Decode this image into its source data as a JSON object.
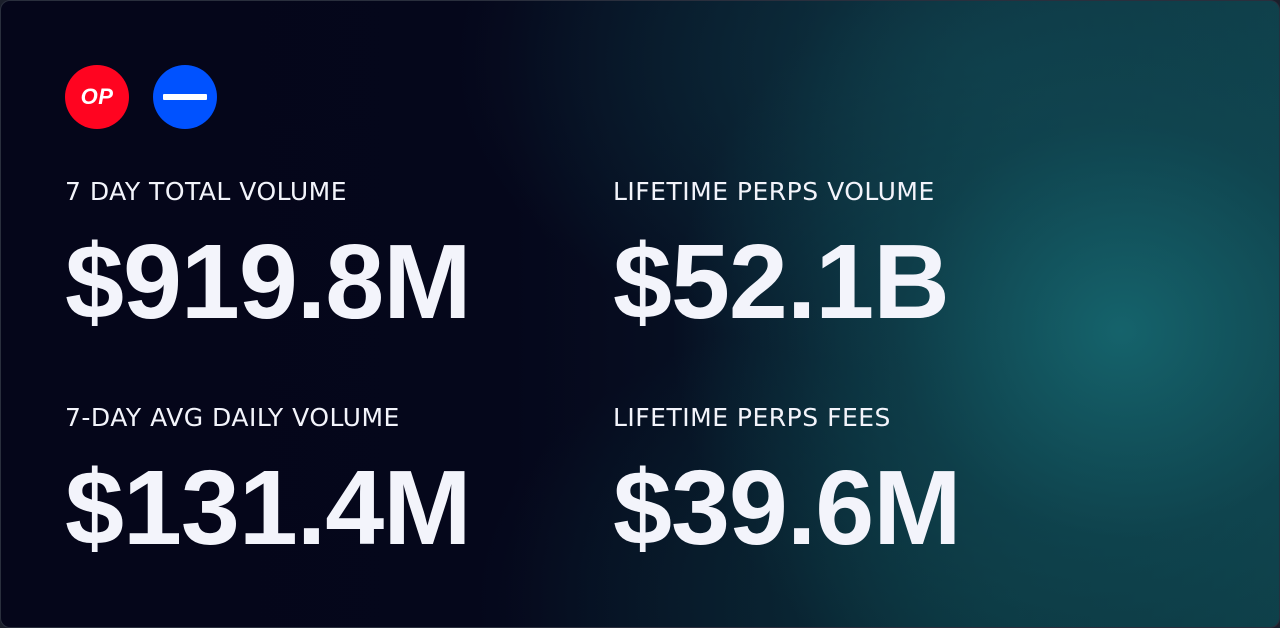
{
  "logos": [
    {
      "name": "optimism-logo",
      "text": "OP",
      "color": "#ff0420"
    },
    {
      "name": "base-logo",
      "color": "#0052ff"
    }
  ],
  "stats": {
    "seven_day_total": {
      "label": "7 DAY TOTAL VOLUME",
      "value": "$919.8M"
    },
    "lifetime_volume": {
      "label": "LIFETIME PERPS VOLUME",
      "value": "$52.1B"
    },
    "seven_day_avg": {
      "label": "7-DAY AVG DAILY VOLUME",
      "value": "$131.4M"
    },
    "lifetime_fees": {
      "label": "LIFETIME PERPS FEES",
      "value": "$39.6M"
    }
  },
  "colors": {
    "text": "#f3f4fb",
    "background_dark": "#05061a",
    "background_teal": "#135a60"
  }
}
